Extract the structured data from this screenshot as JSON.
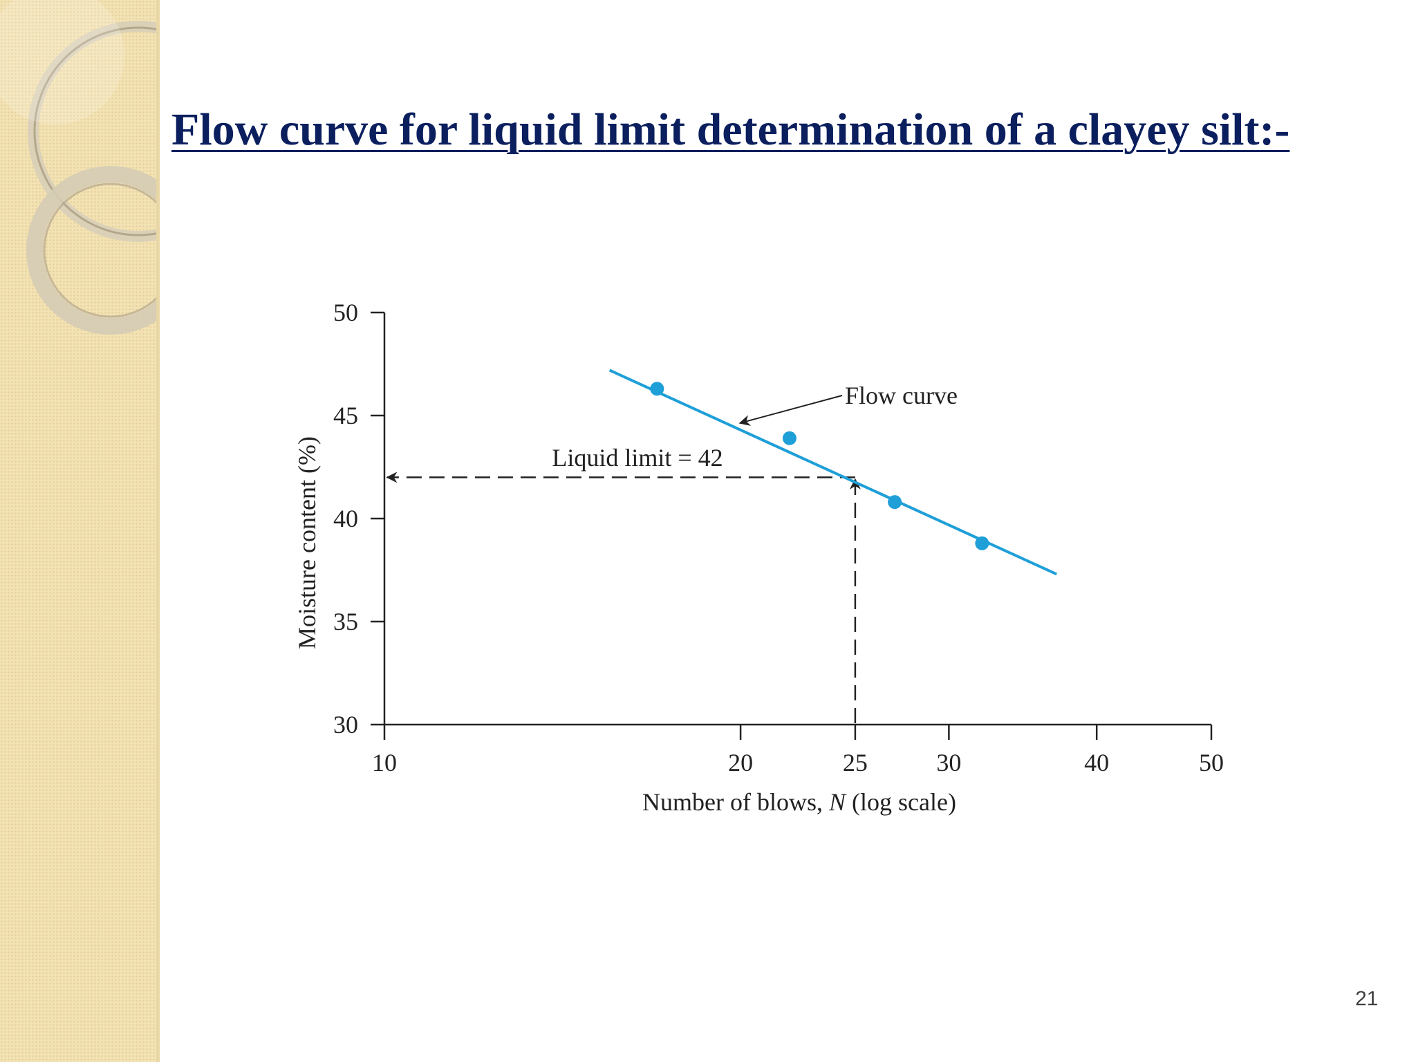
{
  "slide": {
    "title": "Flow curve for liquid limit determination of a clayey silt:-",
    "page_number": "21"
  },
  "colors": {
    "title": "#0b1f5e",
    "series": "#1e9fd8",
    "axis": "#222222",
    "panel": "#f3e2b3"
  },
  "chart_data": {
    "type": "scatter",
    "xlabel_parts": [
      "Number of blows, ",
      "N",
      " (log scale)"
    ],
    "ylabel": "Moisture content (%)",
    "x_scale": "log",
    "xlim": [
      10,
      50
    ],
    "ylim": [
      30,
      50
    ],
    "x_ticks": [
      10,
      20,
      25,
      30,
      40,
      50
    ],
    "y_ticks": [
      30,
      35,
      40,
      45,
      50
    ],
    "grid": false,
    "points": [
      {
        "x": 17,
        "y": 46.3
      },
      {
        "x": 22,
        "y": 43.9
      },
      {
        "x": 27,
        "y": 40.8
      },
      {
        "x": 32,
        "y": 38.8
      }
    ],
    "fit_line": {
      "x": [
        15.5,
        37
      ],
      "y": [
        47.2,
        37.3
      ]
    },
    "annotations": [
      {
        "text": "Flow curve",
        "arrow_to": {
          "x": 20,
          "y": 44.7
        }
      },
      {
        "text": "Liquid limit = 42",
        "x": 25,
        "y": 42
      }
    ]
  }
}
